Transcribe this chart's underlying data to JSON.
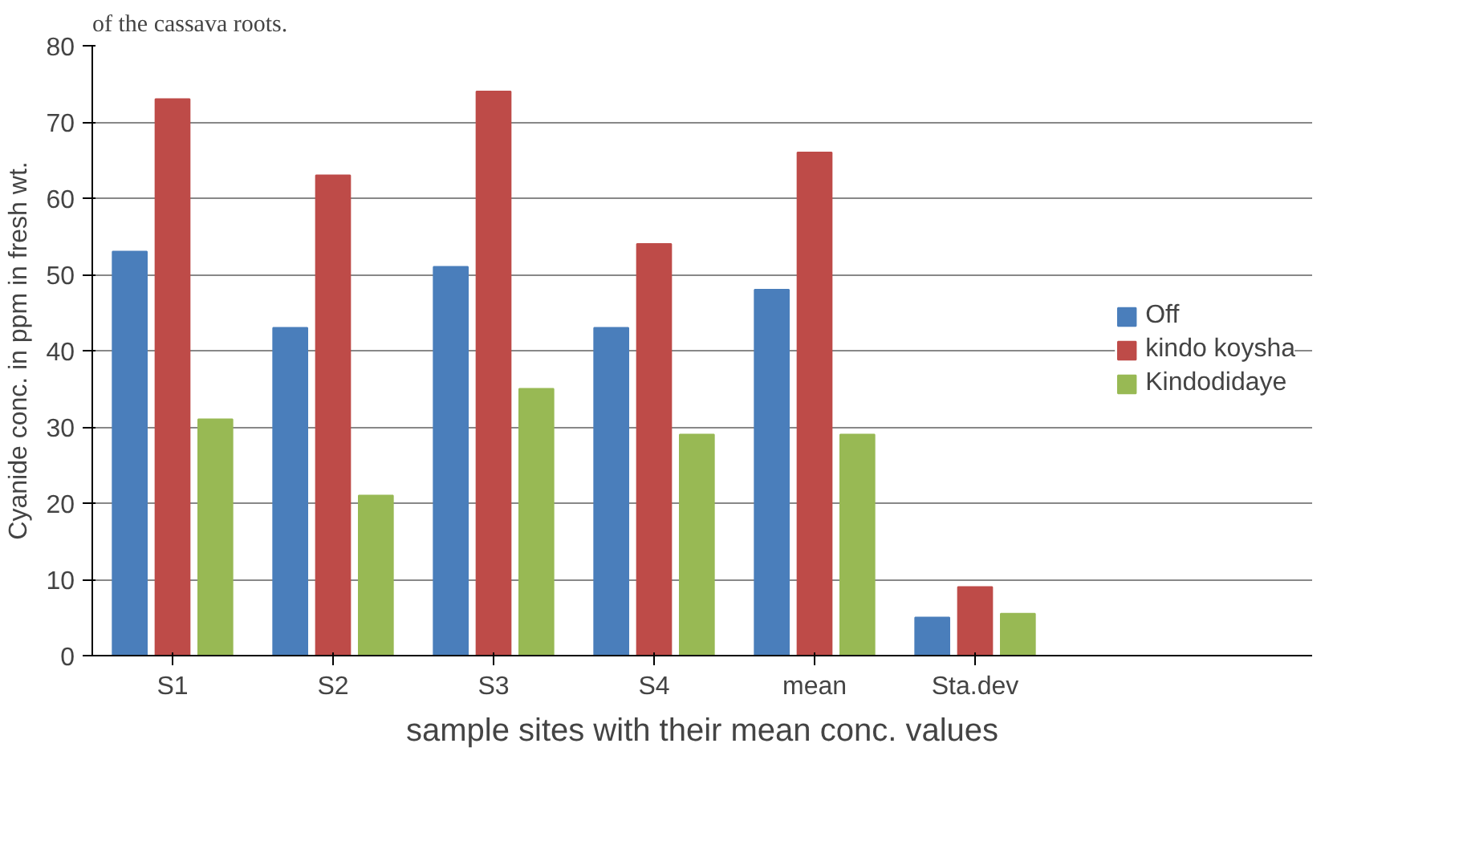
{
  "chart_data": {
    "type": "bar",
    "xlabel": "sample sites with their mean conc. values",
    "ylabel": "Cyanide conc. in ppm in fresh wt.",
    "annotations": [
      "of the cassava roots."
    ],
    "categories": [
      "S1",
      "S2",
      "S3",
      "S4",
      "mean",
      "Sta.dev"
    ],
    "series": [
      {
        "name": "Off",
        "color": "#4a7ebb",
        "values": [
          53,
          43,
          51,
          43,
          48,
          5
        ]
      },
      {
        "name": "kindo koysha",
        "color": "#be4b48",
        "values": [
          73,
          63,
          74,
          54,
          66,
          9
        ]
      },
      {
        "name": "Kindodidaye",
        "color": "#98b954",
        "values": [
          31,
          21,
          35,
          29,
          29,
          5.5
        ]
      }
    ],
    "ylim": [
      0,
      80
    ],
    "yticks": [
      0,
      10,
      20,
      30,
      40,
      50,
      60,
      70,
      80
    ],
    "grid": "y",
    "legend": "right"
  }
}
